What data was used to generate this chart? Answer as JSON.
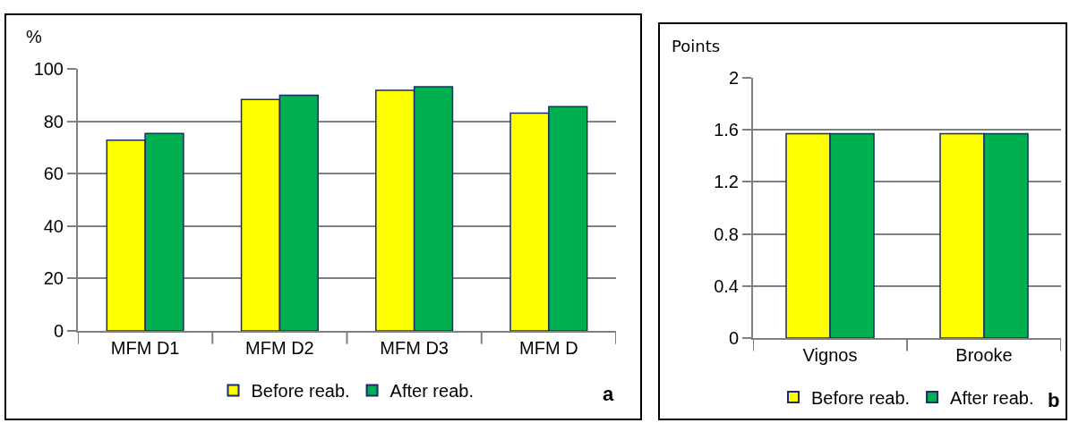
{
  "chart_data": [
    {
      "type": "bar",
      "ylabel": "%",
      "categories": [
        "MFM D1",
        "MFM D2",
        "MFM D3",
        "MFM D"
      ],
      "series": [
        {
          "name": "Before reab.",
          "color": "#ffff00",
          "values": [
            72.8,
            88.3,
            91.8,
            83.1
          ]
        },
        {
          "name": "After reab.",
          "color": "#00b050",
          "values": [
            75.3,
            89.9,
            93.2,
            85.6
          ]
        }
      ],
      "ylim": [
        0,
        100
      ],
      "yticks": [
        0,
        20,
        40,
        60,
        80,
        100
      ],
      "grid": "y",
      "legend": "bottom",
      "annotations": [
        "a"
      ]
    },
    {
      "type": "bar",
      "ylabel": "Points",
      "categories": [
        "Vignos",
        "Brooke"
      ],
      "series": [
        {
          "name": "Before reab.",
          "color": "#ffff00",
          "values": [
            1.57,
            1.57
          ]
        },
        {
          "name": "After reab.",
          "color": "#00b050",
          "values": [
            1.57,
            1.57
          ]
        }
      ],
      "ylim": [
        0,
        2
      ],
      "yticks": [
        0,
        0.4,
        0.8,
        1.2,
        1.6,
        2
      ],
      "grid": "y",
      "legend": "bottom",
      "annotations": [
        "b"
      ]
    }
  ]
}
